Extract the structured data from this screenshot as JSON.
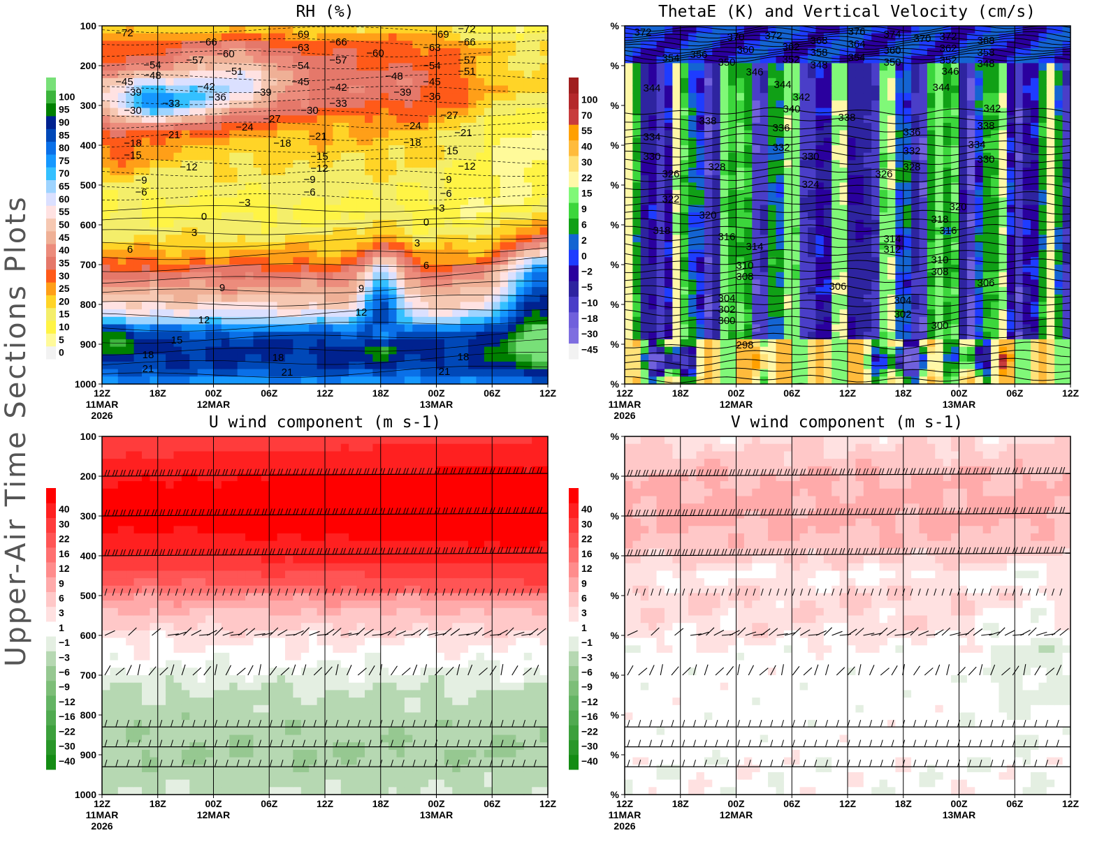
{
  "side_title": "Upper-Air Time Sections Plots",
  "x_axis": {
    "ticks": [
      "12Z",
      "18Z",
      "00Z",
      "06Z",
      "12Z",
      "18Z",
      "00Z",
      "06Z",
      "12Z"
    ],
    "dates": [
      {
        "tick": 0,
        "label": "11MAR",
        "year": "2026"
      },
      {
        "tick": 2,
        "label": "12MAR"
      },
      {
        "tick": 6,
        "label": "13MAR"
      }
    ]
  },
  "chart_data": [
    {
      "type": "heatmap",
      "title": "RH (%)",
      "y_ticks": [
        "100",
        "200",
        "300",
        "400",
        "500",
        "600",
        "700",
        "800",
        "900",
        "1000"
      ],
      "ylim": [
        1000,
        100
      ],
      "x_range": [
        "12Z 11MAR 2026",
        "12Z 13MAR 2026"
      ],
      "colorbar": {
        "labels": [
          "0",
          "5",
          "10",
          "15",
          "20",
          "25",
          "30",
          "35",
          "40",
          "45",
          "50",
          "55",
          "60",
          "65",
          "70",
          "75",
          "80",
          "85",
          "90",
          "95",
          "100"
        ],
        "colors": [
          "#f2f2f2",
          "#fffa9a",
          "#fff445",
          "#f4ee6a",
          "#ffd427",
          "#ff9f18",
          "#ff5a19",
          "#e5786a",
          "#ec8c7c",
          "#efb096",
          "#f6c8b2",
          "#ffe2e2",
          "#dbe0ff",
          "#9ed4ff",
          "#34c0ff",
          "#1598ff",
          "#0a70e8",
          "#0048b8",
          "#00228f",
          "#008000",
          "#3cb43c",
          "#78e078"
        ]
      },
      "contour_field": "temperature",
      "contour_labels": [
        -72,
        -66,
        -69,
        -66,
        -69,
        -72,
        -66,
        -63,
        -63,
        -60,
        -60,
        -57,
        -57,
        -57,
        -54,
        -54,
        -54,
        -51,
        -51,
        -48,
        -48,
        -45,
        -45,
        -45,
        -42,
        -42,
        -39,
        -39,
        -39,
        -36,
        -36,
        -33,
        -33,
        -30,
        -30,
        -27,
        -27,
        -24,
        -24,
        -21,
        -21,
        -21,
        -18,
        -18,
        -18,
        -15,
        -15,
        -15,
        -12,
        -12,
        -12,
        -9,
        -9,
        -9,
        -6,
        -6,
        -6,
        -3,
        -3,
        0,
        0,
        3,
        3,
        6,
        6,
        9,
        9,
        12,
        12,
        15,
        18,
        18,
        18,
        21,
        21,
        21
      ]
    },
    {
      "type": "heatmap",
      "title": "ThetaE (K) and Vertical Velocity (cm/s)",
      "y_ticks": [
        "%",
        "%",
        "%",
        "%",
        "%",
        "%",
        "%",
        "%",
        "%",
        "%"
      ],
      "colorbar": {
        "labels": [
          "-45",
          "-30",
          "-18",
          "-10",
          "-5",
          "-2",
          "0",
          "2",
          "6",
          "9",
          "15",
          "22",
          "30",
          "40",
          "55",
          "70",
          "100"
        ],
        "colors": [
          "#f2f2f2",
          "#7e6ee0",
          "#7060dc",
          "#4a3ec8",
          "#2e24a0",
          "#2a009e",
          "#1e3cff",
          "#1464d2",
          "#10a016",
          "#3cd63c",
          "#80f878",
          "#fff8a8",
          "#ffe27a",
          "#ffbb3c",
          "#ffa000",
          "#c83c3c",
          "#b4282a",
          "#a01e1e"
        ]
      },
      "contour_field": "thetaE",
      "contour_labels": [
        372,
        370,
        372,
        368,
        376,
        374,
        370,
        372,
        368,
        364,
        360,
        362,
        358,
        360,
        362,
        358,
        354,
        356,
        350,
        352,
        348,
        354,
        350,
        352,
        348,
        346,
        346,
        344,
        344,
        344,
        342,
        340,
        342,
        338,
        338,
        338,
        336,
        336,
        334,
        332,
        332,
        334,
        330,
        330,
        330,
        328,
        328,
        326,
        326,
        324,
        322,
        320,
        320,
        318,
        318,
        316,
        316,
        314,
        314,
        312,
        310,
        310,
        308,
        308,
        306,
        306,
        304,
        304,
        302,
        302,
        300,
        300,
        298
      ]
    },
    {
      "type": "heatmap",
      "title": "U wind component (m s-1)",
      "y_ticks": [
        "100",
        "200",
        "300",
        "400",
        "500",
        "600",
        "700",
        "800",
        "900",
        "1000"
      ],
      "colorbar": {
        "labels": [
          "-40",
          "-30",
          "-22",
          "-16",
          "-12",
          "-9",
          "-6",
          "-3",
          "-1",
          "1",
          "3",
          "6",
          "9",
          "12",
          "16",
          "22",
          "30",
          "40"
        ],
        "colors": [
          "#148c14",
          "#289628",
          "#3ca03c",
          "#50aa50",
          "#64b464",
          "#7dbe78",
          "#96c891",
          "#b6d8b2",
          "#e4efe2",
          "#ffffff",
          "#ffe1e1",
          "#ffc8c8",
          "#ffaaaa",
          "#ff8c8c",
          "#ff7070",
          "#ff5555",
          "#ff3c3c",
          "#ff2020",
          "#ff0000"
        ]
      },
      "overlay": "wind barbs"
    },
    {
      "type": "heatmap",
      "title": "V wind component (m s-1)",
      "y_ticks": [
        "%",
        "%",
        "%",
        "%",
        "%",
        "%",
        "%",
        "%",
        "%",
        "%"
      ],
      "colorbar": {
        "labels": [
          "-40",
          "-30",
          "-22",
          "-16",
          "-12",
          "-9",
          "-6",
          "-3",
          "-1",
          "1",
          "3",
          "6",
          "9",
          "12",
          "16",
          "22",
          "30",
          "40"
        ],
        "colors": [
          "#148c14",
          "#289628",
          "#3ca03c",
          "#50aa50",
          "#64b464",
          "#7dbe78",
          "#96c891",
          "#b6d8b2",
          "#e4efe2",
          "#ffffff",
          "#ffe1e1",
          "#ffc8c8",
          "#ffaaaa",
          "#ff8c8c",
          "#ff7070",
          "#ff5555",
          "#ff3c3c",
          "#ff2020",
          "#ff0000"
        ]
      },
      "overlay": "wind barbs"
    }
  ]
}
